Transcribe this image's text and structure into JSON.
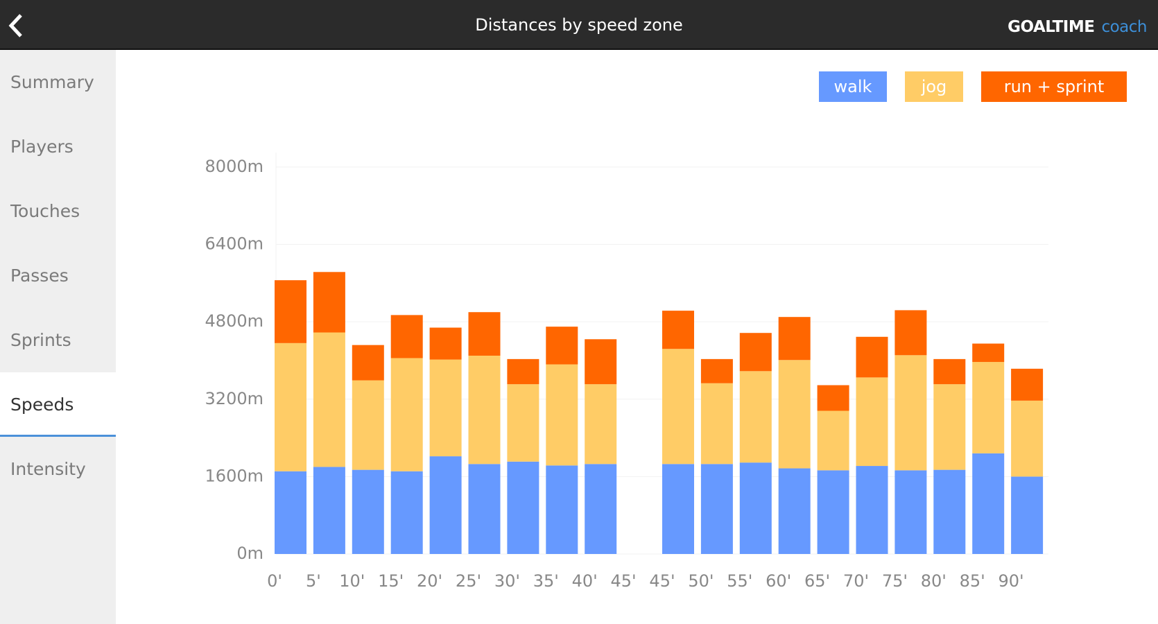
{
  "header": {
    "brand": "GOALTIME",
    "brand_suffix": "coach"
  },
  "nav": [
    "Summary",
    "Players",
    "Touches",
    "Passes",
    "Sprints",
    "Speeds",
    "Intensity"
  ],
  "chart_data": {
    "type": "bar",
    "stacked": true,
    "title": "Distances by speed zone",
    "categories": [
      "0'",
      "5'",
      "10'",
      "15'",
      "20'",
      "25'",
      "30'",
      "35'",
      "40'",
      "45'",
      "45'",
      "50'",
      "55'",
      "60'",
      "65'",
      "70'",
      "75'",
      "80'",
      "85'",
      "90'"
    ],
    "series": [
      {
        "name": "walk",
        "color": "#6699ff",
        "values": [
          1710,
          1800,
          1740,
          1710,
          2020,
          1860,
          1910,
          1830,
          1860,
          null,
          1860,
          1860,
          1890,
          1770,
          1730,
          1820,
          1730,
          1740,
          2080,
          1600
        ]
      },
      {
        "name": "jog",
        "color": "#ffcc66",
        "values": [
          2650,
          2780,
          1850,
          2340,
          2000,
          2240,
          1600,
          2090,
          1650,
          null,
          2380,
          1670,
          1890,
          2240,
          1230,
          1830,
          2380,
          1770,
          1890,
          1570
        ]
      },
      {
        "name": "run + sprint",
        "color": "#ff6600",
        "values": [
          1300,
          1250,
          730,
          890,
          660,
          900,
          520,
          780,
          930,
          null,
          790,
          500,
          790,
          890,
          530,
          840,
          930,
          520,
          380,
          660
        ]
      }
    ],
    "ylim": [
      0,
      8300
    ],
    "yticks": [
      {
        "value": 0,
        "label": "0m"
      },
      {
        "value": 1600,
        "label": "1600m"
      },
      {
        "value": 3200,
        "label": "3200m"
      },
      {
        "value": 4800,
        "label": "4800m"
      },
      {
        "value": 6400,
        "label": "6400m"
      },
      {
        "value": 8000,
        "label": "8000m"
      }
    ],
    "grid": true,
    "legend": "top-right"
  }
}
